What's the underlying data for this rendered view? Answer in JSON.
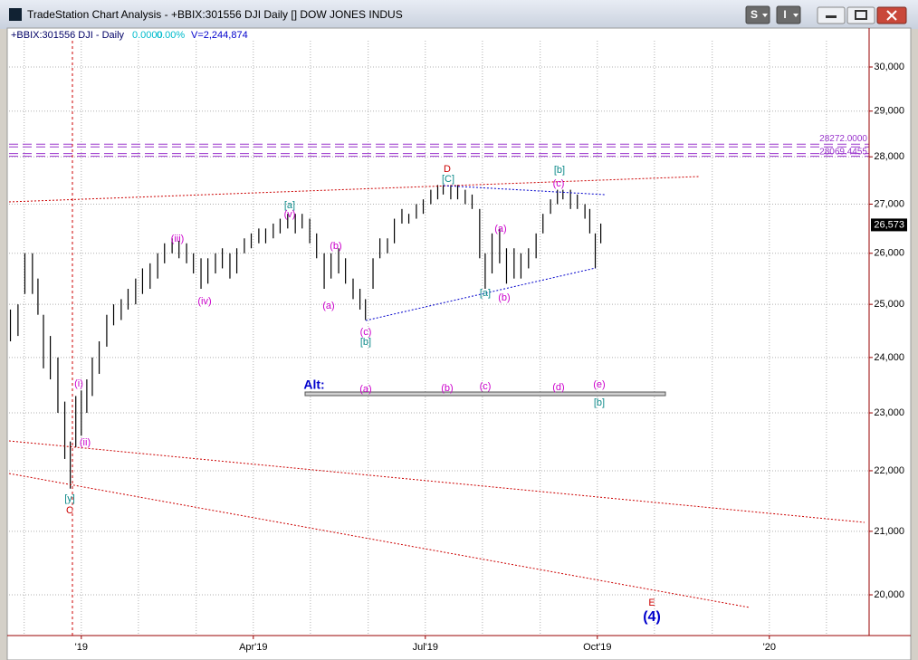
{
  "window": {
    "title": "TradeStation Chart Analysis - +BBIX:301556 DJI Daily [] DOW JONES INDUS",
    "buttons": [
      "S",
      "I"
    ]
  },
  "chart_data": {
    "type": "ohlc",
    "header": {
      "symbol": "+BBIX:301556 DJI - Daily",
      "change": "0.0000",
      "change_pct": "0.00%",
      "volume": "V=2,244,874"
    },
    "log_scale": true,
    "grid": true,
    "color": "#000000",
    "xlim": [
      2018.895,
      2020.145
    ],
    "ylim": [
      19384,
      30611
    ],
    "yticks": [
      {
        "value": 20000,
        "label": "20,000"
      },
      {
        "value": 21000,
        "label": "21,000"
      },
      {
        "value": 22000,
        "label": "22,000"
      },
      {
        "value": 23000,
        "label": "23,000"
      },
      {
        "value": 24000,
        "label": "24,000"
      },
      {
        "value": 25000,
        "label": "25,000"
      },
      {
        "value": 26000,
        "label": "26,000"
      },
      {
        "value": 27000,
        "label": "27,000"
      },
      {
        "value": 28000,
        "label": "28,000"
      },
      {
        "value": 29000,
        "label": "29,000"
      },
      {
        "value": 30000,
        "label": "30,000"
      }
    ],
    "xticks": [
      {
        "value": 2019,
        "label": "'19"
      },
      {
        "value": 2019.25,
        "label": "Apr'19"
      },
      {
        "value": 2019.5,
        "label": "Jul'19"
      },
      {
        "value": 2019.75,
        "label": "Oct'19"
      },
      {
        "value": 2020,
        "label": "'20"
      }
    ],
    "xgrid": [
      2018.917,
      2019,
      2019.083,
      2019.167,
      2019.25,
      2019.333,
      2019.417,
      2019.5,
      2019.583,
      2019.667,
      2019.75,
      2019.833,
      2019.917,
      2020,
      2020.083
    ],
    "levels": [
      {
        "value": 28272,
        "label": "28272.0000",
        "color": "#9933cc"
      },
      {
        "value": 28069.4455,
        "label": "28069.4455",
        "color": "#9933cc"
      }
    ],
    "last": {
      "value": 26573,
      "label": "26,573"
    },
    "x": [
      2018.897,
      2018.908,
      2018.918,
      2018.929,
      2018.937,
      2018.945,
      2018.955,
      2018.966,
      2018.976,
      2018.984,
      2018.992,
      2019.0,
      2019.008,
      2019.016,
      2019.026,
      2019.037,
      2019.047,
      2019.058,
      2019.068,
      2019.079,
      2019.089,
      2019.1,
      2019.111,
      2019.121,
      2019.132,
      2019.142,
      2019.153,
      2019.163,
      2019.174,
      2019.184,
      2019.195,
      2019.205,
      2019.216,
      2019.226,
      2019.237,
      2019.247,
      2019.258,
      2019.268,
      2019.279,
      2019.289,
      2019.3,
      2019.311,
      2019.321,
      2019.332,
      2019.342,
      2019.353,
      2019.363,
      2019.374,
      2019.384,
      2019.395,
      2019.405,
      2019.413,
      2019.424,
      2019.434,
      2019.445,
      2019.455,
      2019.466,
      2019.476,
      2019.487,
      2019.497,
      2019.508,
      2019.518,
      2019.526,
      2019.537,
      2019.547,
      2019.558,
      2019.568,
      2019.579,
      2019.587,
      2019.597,
      2019.608,
      2019.618,
      2019.629,
      2019.639,
      2019.65,
      2019.661,
      2019.671,
      2019.682,
      2019.692,
      2019.7,
      2019.711,
      2019.721,
      2019.732,
      2019.739,
      2019.747,
      2019.755
    ],
    "high": [
      24900,
      25000,
      26000,
      26000,
      25500,
      24800,
      24400,
      24000,
      23200,
      22500,
      23300,
      23400,
      23600,
      24000,
      24300,
      24800,
      25000,
      25100,
      25300,
      25500,
      25700,
      25800,
      26000,
      26200,
      26300,
      26250,
      26200,
      26000,
      25900,
      25900,
      26000,
      26100,
      26000,
      26100,
      26300,
      26400,
      26500,
      26500,
      26600,
      26700,
      26800,
      26800,
      26800,
      26700,
      26400,
      26000,
      26000,
      26100,
      25900,
      25500,
      25300,
      25100,
      25900,
      26300,
      26300,
      26700,
      26900,
      26800,
      27000,
      27100,
      27300,
      27400,
      27400,
      27400,
      27400,
      27300,
      27200,
      26900,
      26000,
      26400,
      26500,
      26100,
      26100,
      26000,
      26100,
      26400,
      26800,
      27100,
      27300,
      27300,
      27300,
      27200,
      27000,
      26900,
      26400,
      26600
    ],
    "low": [
      24300,
      24400,
      25200,
      25200,
      24800,
      23800,
      23600,
      23000,
      22200,
      21700,
      22400,
      22600,
      23000,
      23300,
      23700,
      24200,
      24600,
      24700,
      24900,
      25000,
      25200,
      25300,
      25500,
      25800,
      26000,
      25900,
      25800,
      25600,
      25300,
      25400,
      25600,
      25700,
      25500,
      25600,
      26000,
      26100,
      26200,
      26200,
      26300,
      26400,
      26500,
      26400,
      26500,
      26200,
      25900,
      25300,
      25500,
      25600,
      25400,
      25100,
      24900,
      24700,
      25300,
      25900,
      26000,
      26200,
      26600,
      26600,
      26700,
      26800,
      27000,
      27100,
      27200,
      27100,
      27100,
      27000,
      26900,
      25900,
      25300,
      25600,
      25800,
      25400,
      25500,
      25500,
      25700,
      25900,
      26400,
      26800,
      27000,
      27100,
      26900,
      26900,
      26700,
      26400,
      25700,
      26200
    ],
    "annotations": [
      {
        "text": "D",
        "color": "#cc0000"
      },
      {
        "text": "[C]",
        "color": "#0e8a8a"
      },
      {
        "text": "[b]",
        "color": "#0e8a8a"
      },
      {
        "text": "(c)",
        "color": "#cc00cc"
      },
      {
        "text": "[a]",
        "color": "#0e8a8a"
      },
      {
        "text": "(v)",
        "color": "#cc00cc"
      },
      {
        "text": "(iii)",
        "color": "#cc00cc"
      },
      {
        "text": "(iv)",
        "color": "#cc00cc"
      },
      {
        "text": "(b)",
        "color": "#cc00cc"
      },
      {
        "text": "(a)",
        "color": "#cc00cc"
      },
      {
        "text": "(c)",
        "color": "#cc00cc"
      },
      {
        "text": "[b]",
        "color": "#0e8a8a"
      },
      {
        "text": "(a)",
        "color": "#cc00cc"
      },
      {
        "text": "[a]",
        "color": "#0e8a8a"
      },
      {
        "text": "(b)",
        "color": "#cc00cc"
      },
      {
        "text": "(i)",
        "color": "#cc00cc"
      },
      {
        "text": "(ii)",
        "color": "#cc00cc"
      },
      {
        "text": "[y]",
        "color": "#0e8a8a"
      },
      {
        "text": "C",
        "color": "#cc0000"
      },
      {
        "text": "Alt:",
        "color": "#0000cc"
      },
      {
        "text": "(a)",
        "color": "#cc00cc"
      },
      {
        "text": "(b)",
        "color": "#cc00cc"
      },
      {
        "text": "(c)",
        "color": "#cc00cc"
      },
      {
        "text": "(d)",
        "color": "#cc00cc"
      },
      {
        "text": "(e)",
        "color": "#cc00cc"
      },
      {
        "text": "[b]",
        "color": "#0e8a8a"
      },
      {
        "text": "E",
        "color": "#cc0000"
      },
      {
        "text": "(4)",
        "color": "#0000cc"
      }
    ]
  }
}
